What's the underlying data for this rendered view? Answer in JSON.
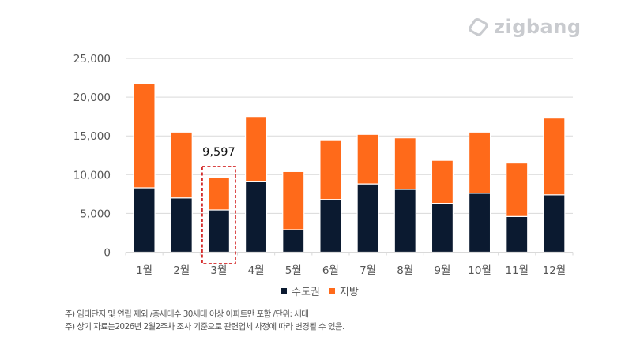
{
  "logo": {
    "text": "zigbang",
    "icon": "zigbang-logo-icon"
  },
  "colors": {
    "metro": "#0b1a30",
    "regional": "#ff6a1a",
    "highlight": "#d42a2a",
    "grid": "#d9d9d9",
    "text": "#555555"
  },
  "legend": [
    {
      "name": "수도권",
      "color": "#0b1a30"
    },
    {
      "name": "지방",
      "color": "#ff6a1a"
    }
  ],
  "notes": [
    "주) 임대단지 및 연립 제외 /총세대수 30세대 이상 아파트만 포함 /단위: 세대",
    "주) 상기 자료는2026년 2월2주차 조사 기준으로 관련업체 사정에 따라 변경될 수 있음."
  ],
  "chart_data": {
    "type": "bar",
    "stacked": true,
    "title": "",
    "xlabel": "",
    "ylabel": "",
    "ylim": [
      0,
      25000
    ],
    "yticks": [
      0,
      5000,
      10000,
      15000,
      20000,
      25000
    ],
    "ytick_labels": [
      "0",
      "5,000",
      "10,000",
      "15,000",
      "20,000",
      "25,000"
    ],
    "grid": true,
    "legend_position": "bottom",
    "categories": [
      "1월",
      "2월",
      "3월",
      "4월",
      "5월",
      "6월",
      "7월",
      "8월",
      "9월",
      "10월",
      "11월",
      "12월"
    ],
    "series": [
      {
        "name": "수도권",
        "values": [
          8300,
          7000,
          5450,
          9150,
          2900,
          6800,
          8800,
          8100,
          6300,
          7600,
          4600,
          7400
        ]
      },
      {
        "name": "지방",
        "values": [
          13400,
          8500,
          4147,
          8350,
          7500,
          7700,
          6400,
          6650,
          5550,
          7900,
          6900,
          9900
        ]
      }
    ],
    "annotations": [
      {
        "category": "3월",
        "text": "9,597",
        "style": "dashed-box"
      }
    ]
  }
}
